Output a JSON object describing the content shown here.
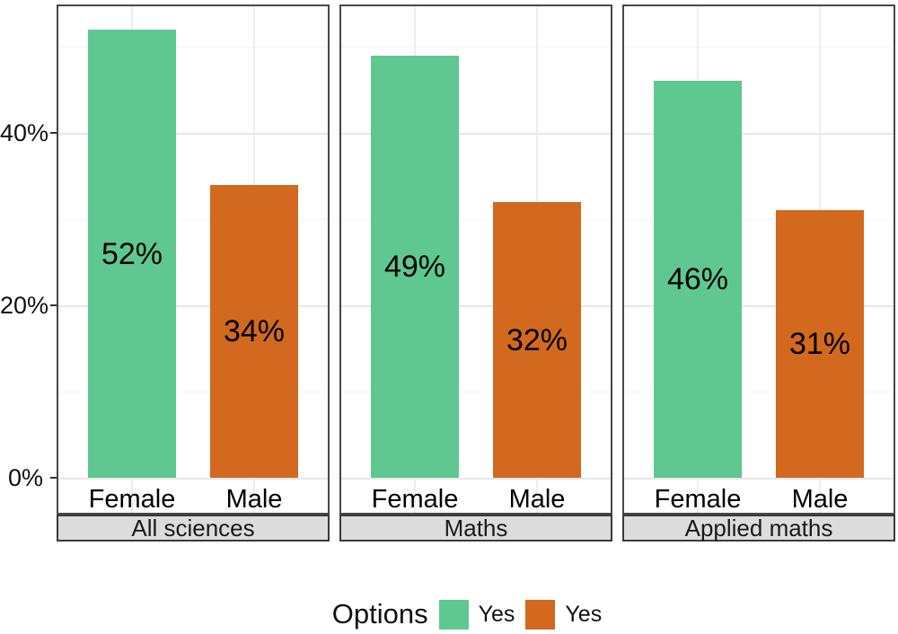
{
  "chart_data": {
    "type": "bar",
    "title": "",
    "xlabel": "",
    "ylabel": "",
    "categories": [
      "Female",
      "Male"
    ],
    "facets": [
      {
        "label": "All sciences",
        "bars": [
          {
            "category": "Female",
            "value": 52,
            "data_label": "52%",
            "legend": "Yes",
            "color_key": "green"
          },
          {
            "category": "Male",
            "value": 34,
            "data_label": "34%",
            "legend": "Yes",
            "color_key": "orange"
          }
        ]
      },
      {
        "label": "Maths",
        "bars": [
          {
            "category": "Female",
            "value": 49,
            "data_label": "49%",
            "legend": "Yes",
            "color_key": "green"
          },
          {
            "category": "Male",
            "value": 32,
            "data_label": "32%",
            "legend": "Yes",
            "color_key": "orange"
          }
        ]
      },
      {
        "label": "Applied maths",
        "bars": [
          {
            "category": "Female",
            "value": 46,
            "data_label": "46%",
            "legend": "Yes",
            "color_key": "green"
          },
          {
            "category": "Male",
            "value": 31,
            "data_label": "31%",
            "legend": "Yes",
            "color_key": "orange"
          }
        ]
      }
    ],
    "y_axis": {
      "ticks": [
        {
          "value": 0,
          "label": "0%"
        },
        {
          "value": 20,
          "label": "20%"
        },
        {
          "value": 40,
          "label": "40%"
        }
      ],
      "minor_gridlines": [
        10,
        30,
        50
      ],
      "ylim": [
        0,
        54.7
      ],
      "grid": true
    },
    "legend": {
      "title": "Options",
      "position": "bottom",
      "entries": [
        {
          "label": "Yes",
          "color": "#5ec890"
        },
        {
          "label": "Yes",
          "color": "#d2691e"
        }
      ]
    },
    "colors": {
      "green": "#5ec890",
      "orange": "#d2691e"
    }
  },
  "style": {
    "background": "#ffffff",
    "panel_border": "#474747",
    "strip_background": "#dcdcdc",
    "strip_border": "#3a3a3a",
    "grid_major": "#e7e7e7",
    "grid_minor": "#f4f4f4",
    "tick_mark": "#333333",
    "text_color": "#0f0f0f"
  }
}
